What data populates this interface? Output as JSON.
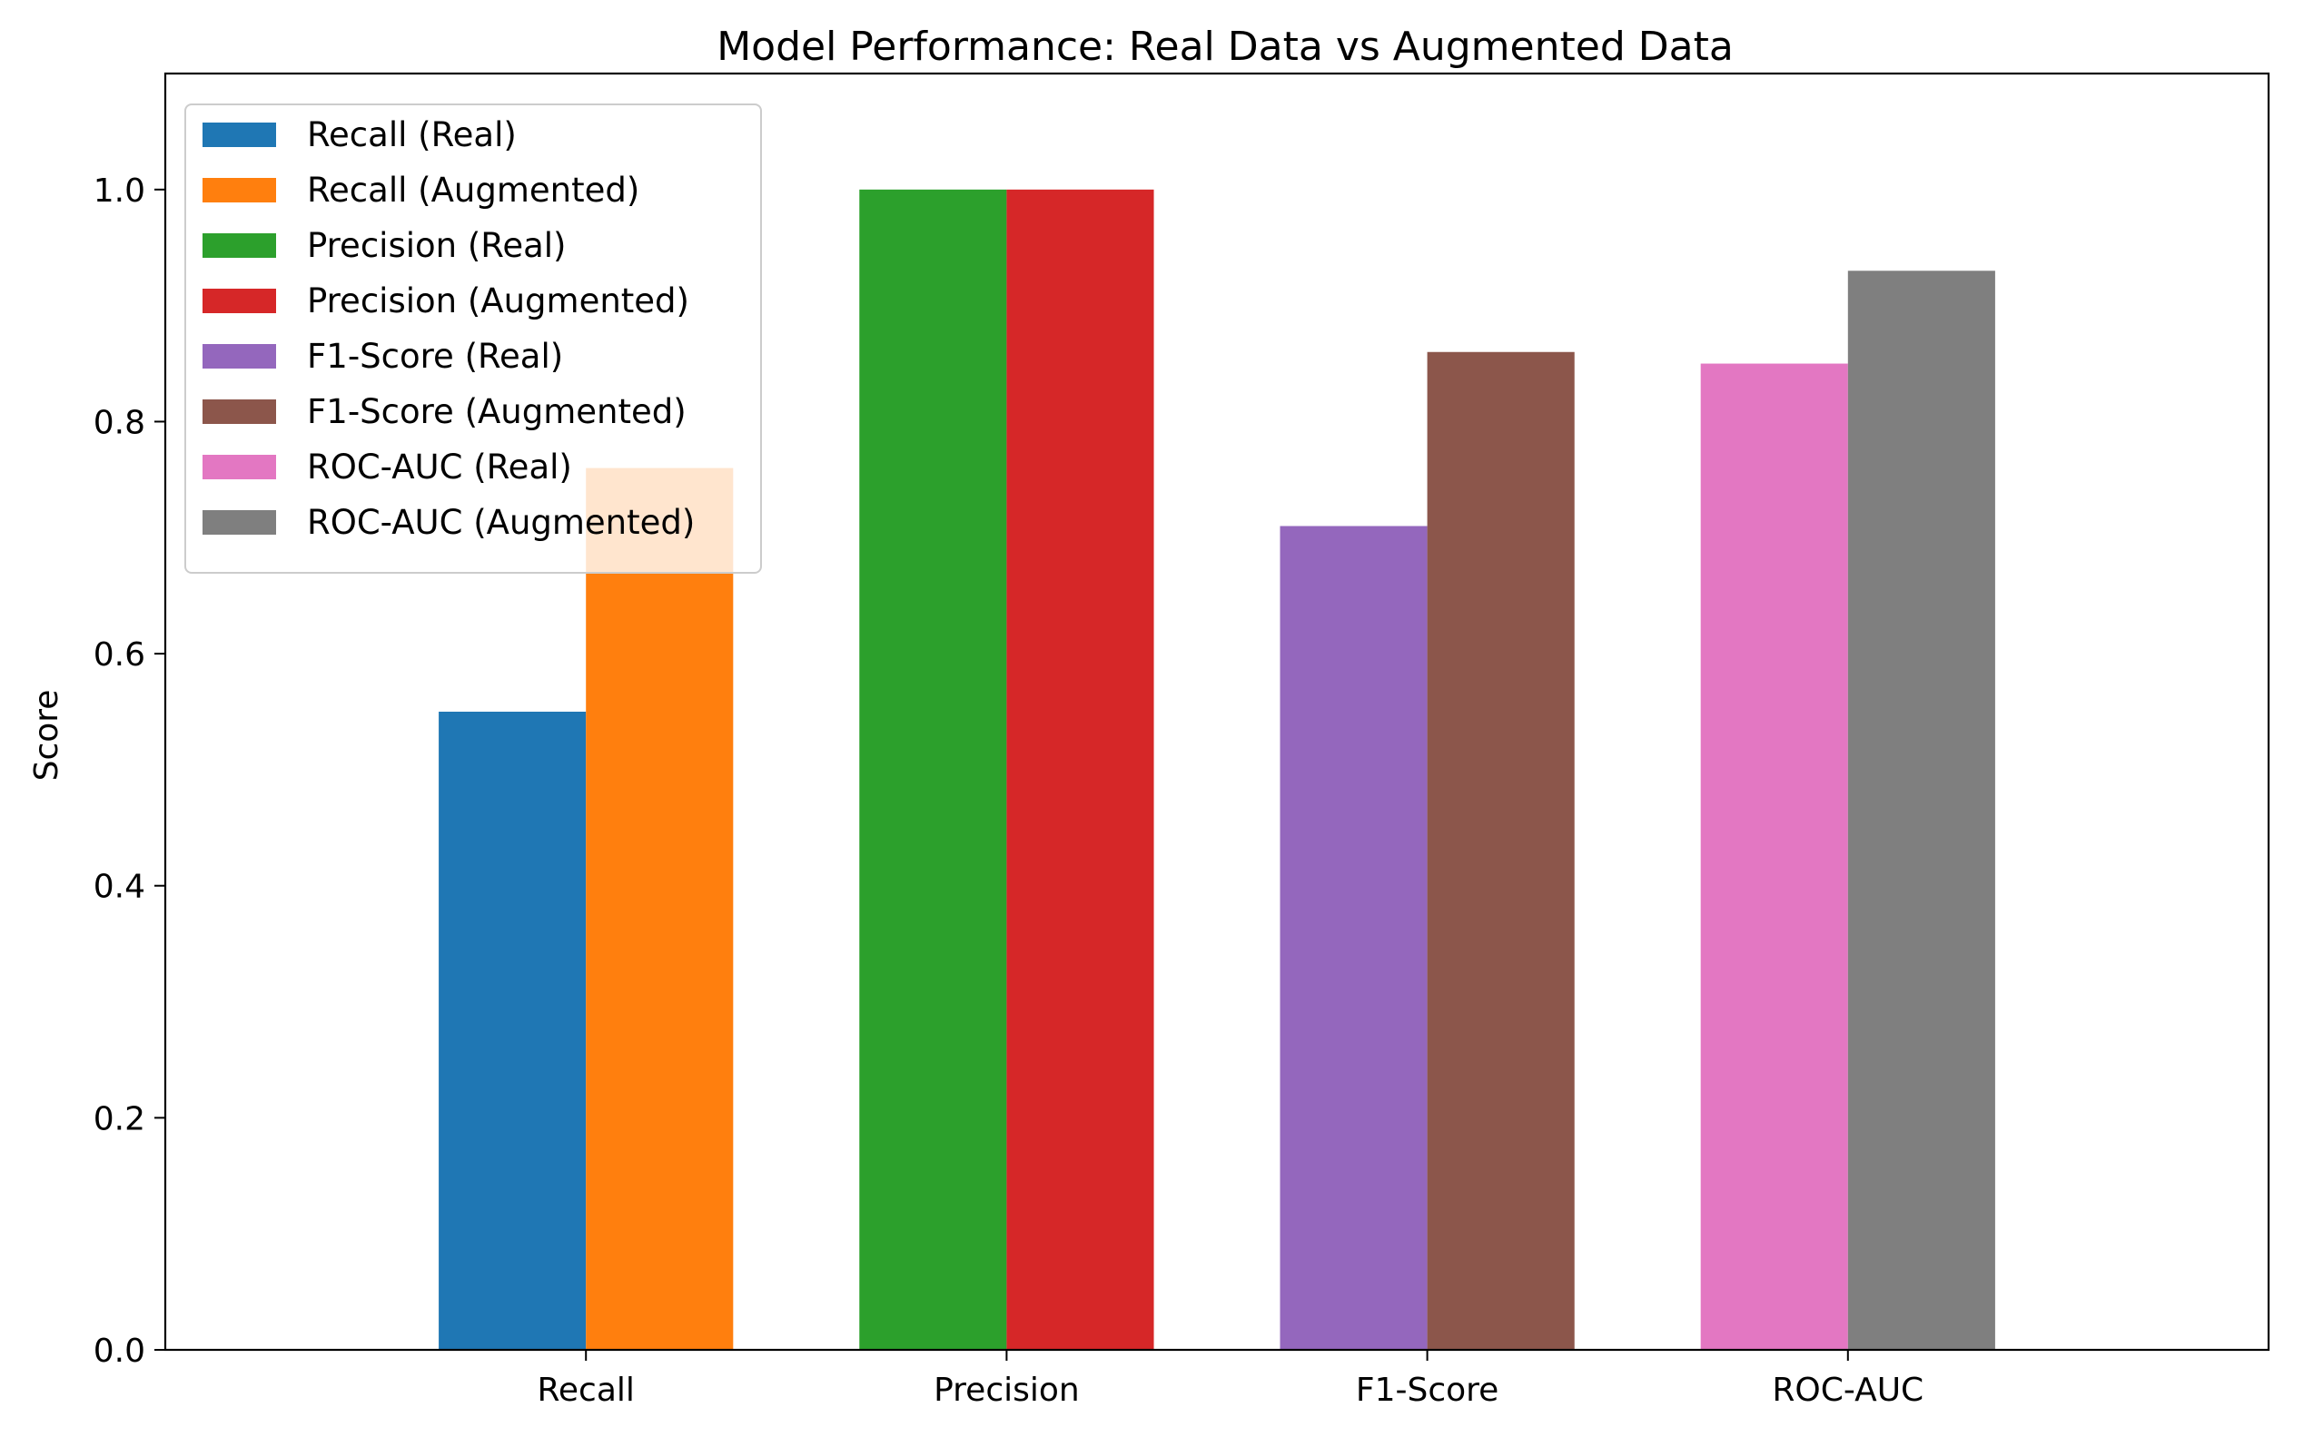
{
  "chart_data": {
    "type": "bar",
    "title": "Model Performance: Real Data vs Augmented Data",
    "xlabel": "",
    "ylabel": "Score",
    "categories": [
      "Recall",
      "Precision",
      "F1-Score",
      "ROC-AUC"
    ],
    "ylim": [
      0,
      1.1
    ],
    "yticks": [
      "0.0",
      "0.2",
      "0.4",
      "0.6",
      "0.8",
      "1.0"
    ],
    "grid": false,
    "legend_position": "top-left",
    "series": [
      {
        "name": "Recall (Real)",
        "category": "Recall",
        "value": 0.55,
        "color": "#1f77b4"
      },
      {
        "name": "Recall (Augmented)",
        "category": "Recall",
        "value": 0.76,
        "color": "#ff7f0e"
      },
      {
        "name": "Precision (Real)",
        "category": "Precision",
        "value": 1.0,
        "color": "#2ca02c"
      },
      {
        "name": "Precision (Augmented)",
        "category": "Precision",
        "value": 1.0,
        "color": "#d62728"
      },
      {
        "name": "F1-Score (Real)",
        "category": "F1-Score",
        "value": 0.71,
        "color": "#9467bd"
      },
      {
        "name": "F1-Score (Augmented)",
        "category": "F1-Score",
        "value": 0.86,
        "color": "#8c564b"
      },
      {
        "name": "ROC-AUC (Real)",
        "category": "ROC-AUC",
        "value": 0.85,
        "color": "#e377c2"
      },
      {
        "name": "ROC-AUC (Augmented)",
        "category": "ROC-AUC",
        "value": 0.93,
        "color": "#7f7f7f"
      }
    ]
  }
}
